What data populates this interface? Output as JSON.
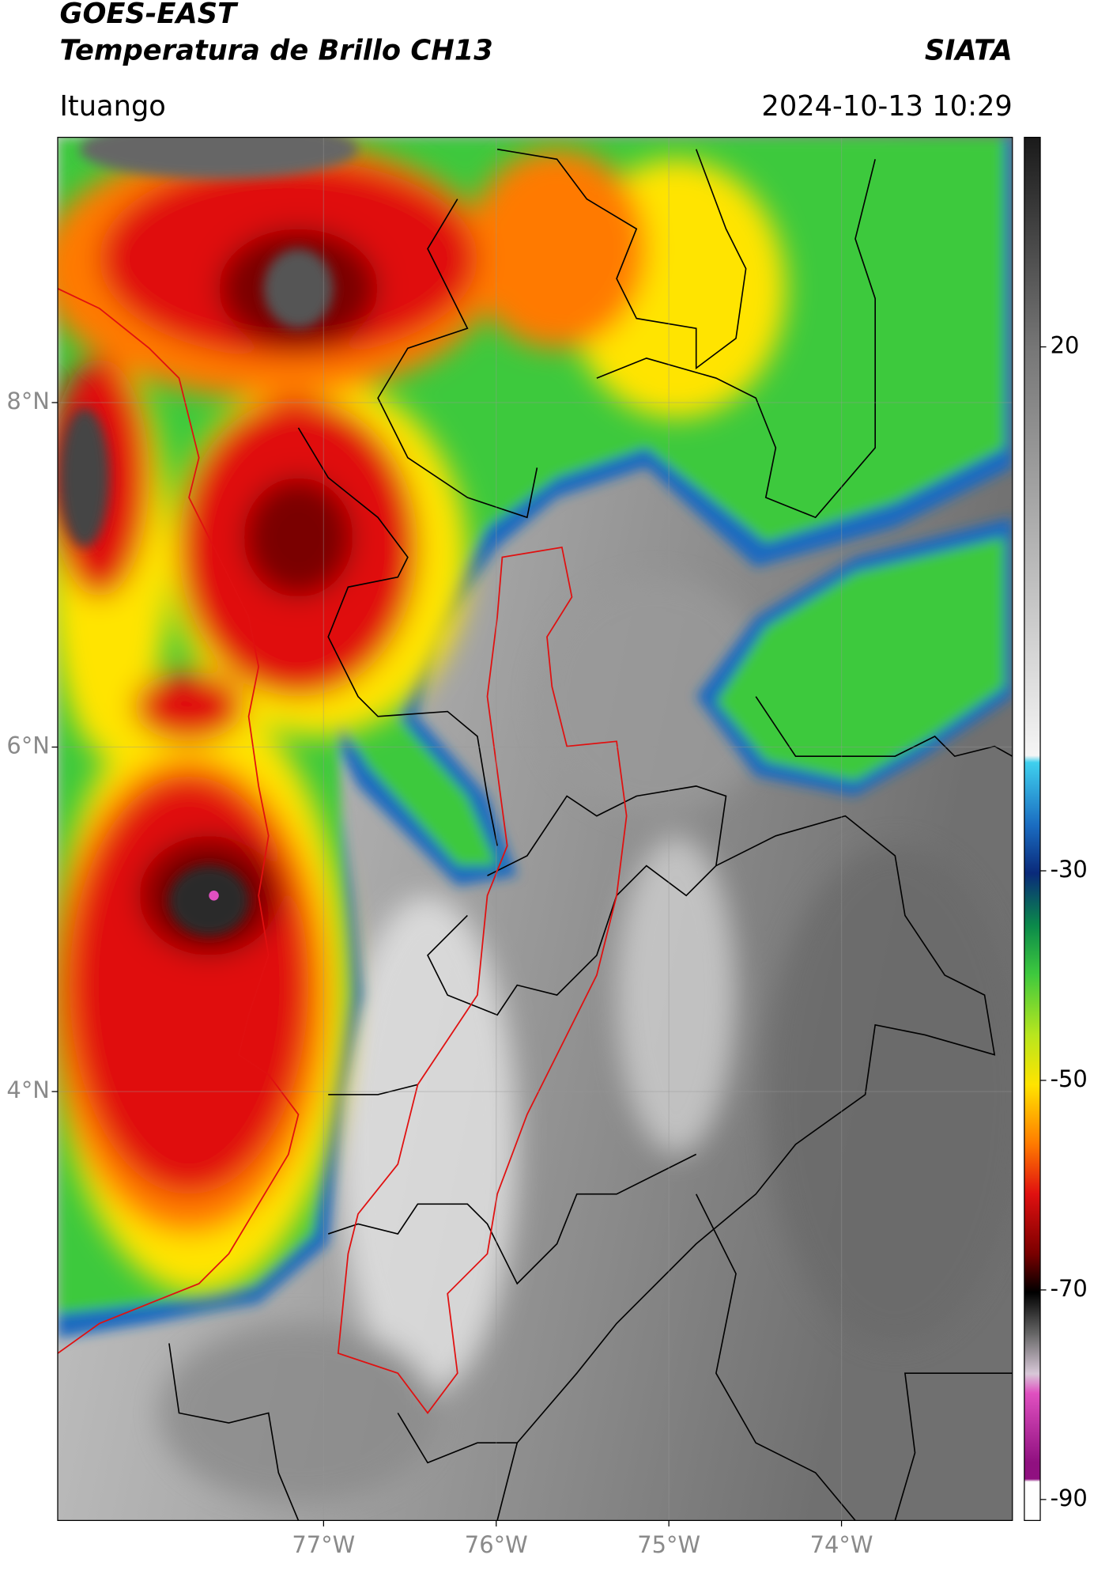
{
  "header": {
    "title": "GOES-EAST",
    "subtitle": "Temperatura de Brillo CH13",
    "brand": "SIATA",
    "place": "Ituango",
    "datetime": "2024-10-13 10:29"
  },
  "map": {
    "xlim": [
      -78.54,
      -73.01
    ],
    "ylim": [
      1.51,
      9.54
    ],
    "xticks": [
      {
        "value": -77,
        "label": "77°W"
      },
      {
        "value": -76,
        "label": "76°W"
      },
      {
        "value": -75,
        "label": "75°W"
      },
      {
        "value": -74,
        "label": "74°W"
      }
    ],
    "yticks": [
      {
        "value": 4,
        "label": "4°N"
      },
      {
        "value": 6,
        "label": "6°N"
      },
      {
        "value": 8,
        "label": "8°N"
      }
    ],
    "grid": true
  },
  "colorbar": {
    "clim": [
      -92,
      40
    ],
    "ticks": [
      -90,
      -70,
      -50,
      -30,
      20
    ]
  }
}
